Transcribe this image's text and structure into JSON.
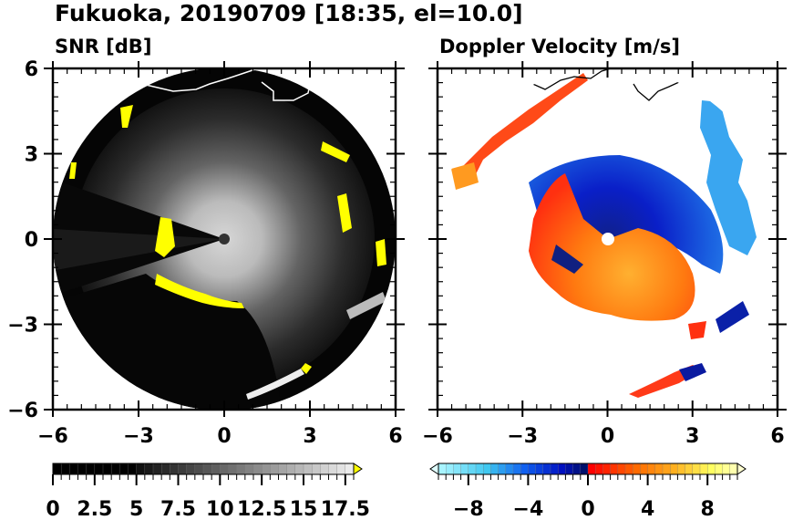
{
  "figure": {
    "title": "Fukuoka, 20190709 [18:35, el=10.0]"
  },
  "chart_data": [
    {
      "type": "heatmap",
      "subtype": "radar-ppi",
      "title": "SNR [dB]",
      "location": "Fukuoka",
      "date": "20190709",
      "time": "18:35",
      "elevation": 10.0,
      "xlim": [
        -6,
        6
      ],
      "ylim": [
        -6,
        6
      ],
      "xticks": [
        -6,
        -3,
        0,
        3,
        6
      ],
      "yticks": [
        -6,
        -3,
        0,
        3,
        6
      ],
      "xtick_labels": [
        "−6",
        "−3",
        "0",
        "3",
        "6"
      ],
      "ytick_labels": [
        "−6",
        "−3",
        "0",
        "3",
        "6"
      ],
      "range_max": 6,
      "radar_center": [
        0,
        0
      ],
      "coastline_color": "#ffffff",
      "colorbar": {
        "min": 0,
        "max": 18,
        "step": 0.5,
        "extend": "max",
        "over_color": "#ffff00",
        "tick_values": [
          0,
          2.5,
          5,
          7.5,
          10,
          12.5,
          15,
          17.5
        ],
        "tick_labels": [
          "0",
          "2.5",
          "5",
          "7.5",
          "10",
          "12.5",
          "15",
          "17.5"
        ],
        "colormap": "grayscale (black → white), values ≤5 black"
      },
      "features": [
        {
          "desc": "bright near-radar clutter",
          "region": "center, radius ≈ 1.5",
          "value_range": "10–17.5"
        },
        {
          "desc": "saturated (>18 dB) echoes along coastline and hills",
          "region": "ring at r≈4–6",
          "color": "yellow"
        },
        {
          "desc": "strong clutter band",
          "region": "south-west of center, x −2.5…0, y −1…−2.3",
          "color": "yellow"
        },
        {
          "desc": "blocked sector (low SNR)",
          "region": "west, azimuth ≈ 250°–290°"
        }
      ]
    },
    {
      "type": "heatmap",
      "subtype": "radar-ppi",
      "title": "Doppler Velocity [m/s]",
      "xlim": [
        -6,
        6
      ],
      "ylim": [
        -6,
        6
      ],
      "xticks": [
        -6,
        -3,
        0,
        3,
        6
      ],
      "yticks": [
        -6,
        -3,
        0,
        3,
        6
      ],
      "xtick_labels": [
        "−6",
        "−3",
        "0",
        "3",
        "6"
      ],
      "ytick_labels": [
        "−6",
        "−3",
        "0",
        "3",
        "6"
      ],
      "range_max": 6,
      "radar_center": [
        0,
        0
      ],
      "coastline_color": "#000000",
      "colorbar": {
        "min": -10,
        "max": 10,
        "step": 0.5,
        "extend": "both",
        "under_color": "#e0ffff",
        "over_color": "#ffffd0",
        "tick_values": [
          -8,
          -4,
          0,
          4,
          8
        ],
        "tick_labels": [
          "−8",
          "−4",
          "0",
          "4",
          "8"
        ],
        "colormap": "cyan → blue → navy (negative) | red → orange → yellow (positive)"
      },
      "features": [
        {
          "desc": "approaching (negative) velocities",
          "region": "north / north-east of radar",
          "value_range": "−10…−1"
        },
        {
          "desc": "receding (positive) velocities",
          "region": "south / south-west of radar",
          "value_range": "1…8"
        },
        {
          "desc": "light-blue echoes",
          "region": "north-east edge x≈3.5–5, y≈1–5",
          "value_range": "−9…−6"
        },
        {
          "desc": "orange echoes along coastline",
          "region": "north-west, x −5.5…−3, y 2…5",
          "value_range": "2…6"
        }
      ]
    }
  ]
}
